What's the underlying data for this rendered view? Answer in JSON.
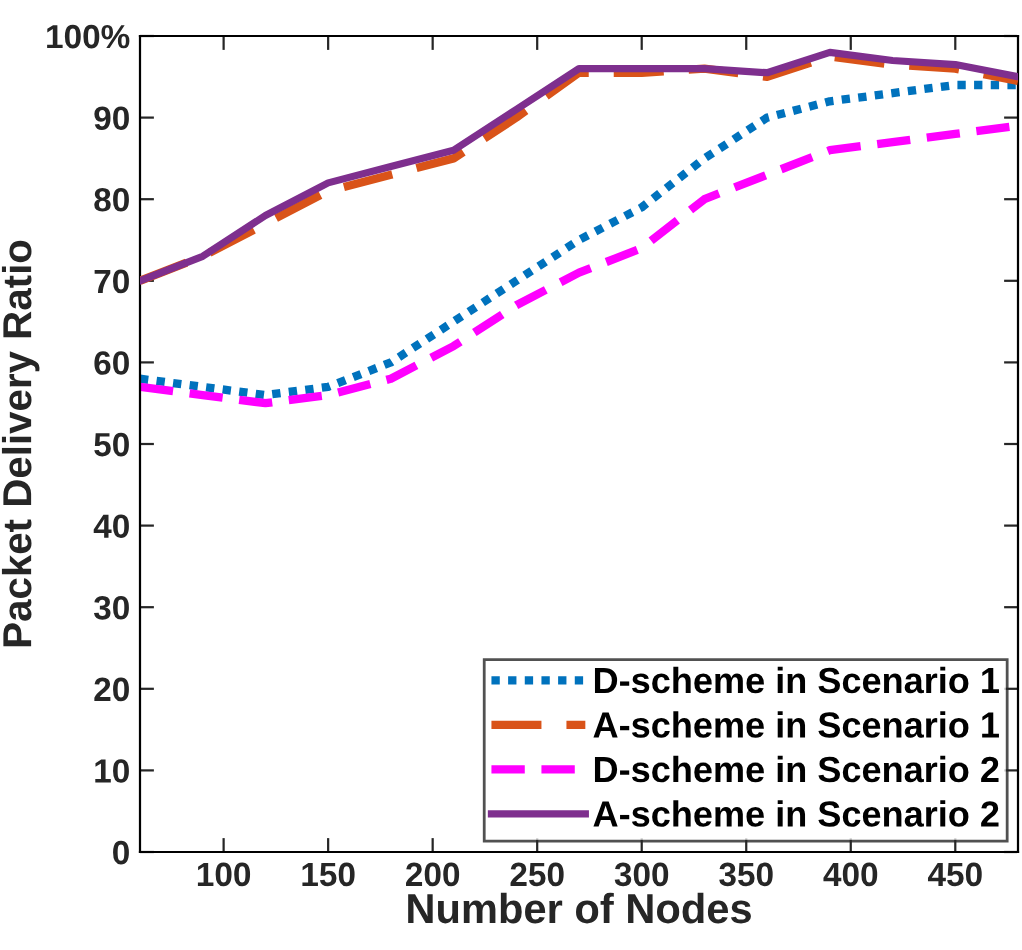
{
  "chart_data": {
    "type": "line",
    "xlabel": "Number of Nodes",
    "ylabel": "Packet Delivery Ratio",
    "x": [
      60,
      90,
      120,
      150,
      180,
      210,
      240,
      270,
      300,
      330,
      360,
      390,
      420,
      450,
      480
    ],
    "series": [
      {
        "name": "D-scheme in Scenario 1",
        "color": "#0072bd",
        "line_style": "dotted",
        "values": [
          58,
          57,
          56,
          57,
          60,
          65,
          70,
          75,
          79,
          85,
          90,
          92,
          93,
          94,
          94
        ]
      },
      {
        "name": "A-scheme in Scenario 1",
        "color": "#d95319",
        "line_style": "dashed",
        "values": [
          70,
          73,
          77,
          81,
          83,
          85,
          90,
          95.5,
          95.5,
          96,
          95,
          97.5,
          96.5,
          96,
          94.5
        ]
      },
      {
        "name": "D-scheme in Scenario 2",
        "color": "#ff00ff",
        "line_style": "dashed",
        "values": [
          57,
          56,
          55,
          56,
          58,
          62,
          67,
          71,
          74,
          80,
          83,
          86,
          87,
          88,
          89
        ]
      },
      {
        "name": "A-scheme in Scenario 2",
        "color": "#7e2f8e",
        "line_style": "solid",
        "values": [
          70,
          73,
          78,
          82,
          84,
          86,
          91,
          96,
          96,
          96,
          95.5,
          98,
          97,
          96.5,
          95
        ]
      }
    ],
    "xlim": [
      60,
      480
    ],
    "xticks": [
      100,
      150,
      200,
      250,
      300,
      350,
      400,
      450
    ],
    "ylim": [
      0,
      100
    ],
    "yticks": [
      0,
      10,
      20,
      30,
      40,
      50,
      60,
      70,
      80,
      90,
      {
        "value": 100,
        "label": "100%"
      }
    ],
    "grid": false,
    "legend": "bottom right",
    "marker": "none"
  }
}
